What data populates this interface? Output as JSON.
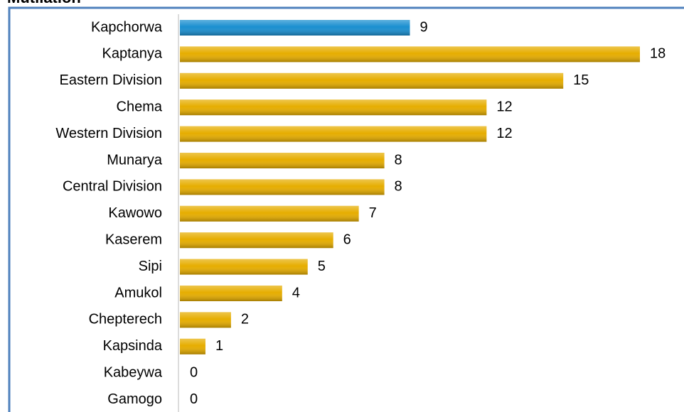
{
  "chart_data": {
    "type": "barh",
    "title": "Mutilation",
    "categories": [
      "Kapchorwa",
      "Kaptanya",
      "Eastern Division",
      "Chema",
      "Western Division",
      "Munarya",
      "Central Division",
      "Kawowo",
      "Kaserem",
      "Sipi",
      "Amukol",
      "Chepterech",
      "Kapsinda",
      "Kabeywa",
      "Gamogo"
    ],
    "values": [
      9,
      18,
      15,
      12,
      12,
      8,
      8,
      7,
      6,
      5,
      4,
      2,
      1,
      0,
      0
    ],
    "colors": [
      "#1a8fd0",
      "#e6ad00",
      "#e6ad00",
      "#e6ad00",
      "#e6ad00",
      "#e6ad00",
      "#e6ad00",
      "#e6ad00",
      "#e6ad00",
      "#e6ad00",
      "#e6ad00",
      "#e6ad00",
      "#e6ad00",
      "#e6ad00",
      "#e6ad00"
    ],
    "xlim": [
      0,
      18
    ]
  }
}
